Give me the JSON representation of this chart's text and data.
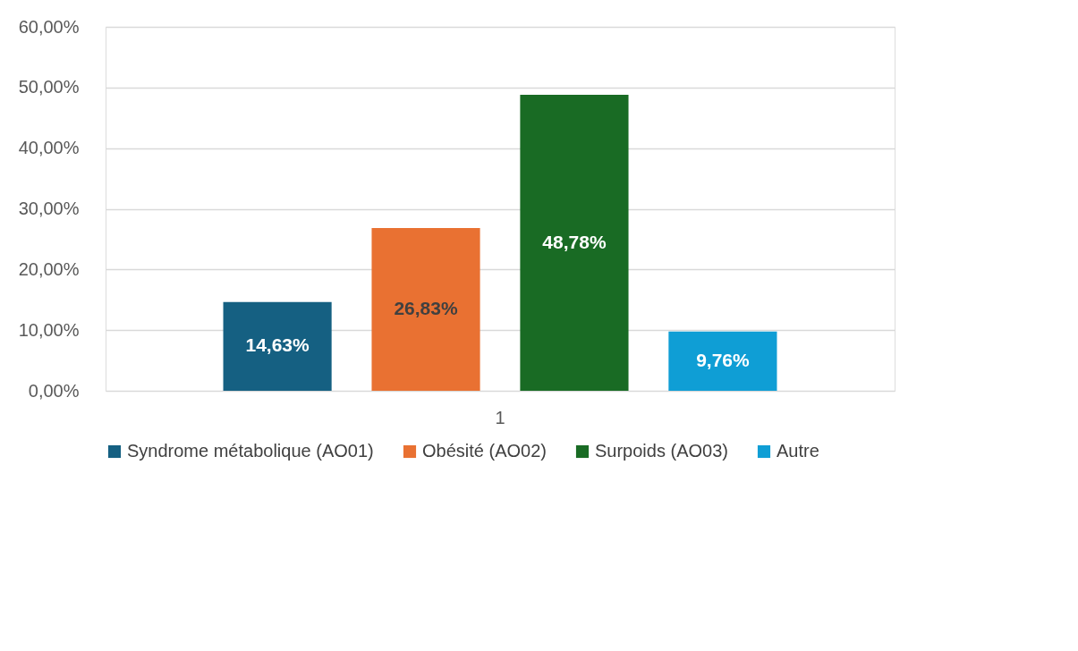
{
  "chart_data": {
    "type": "bar",
    "categories": [
      "1"
    ],
    "series": [
      {
        "name": "Syndrome métabolique (AO01)",
        "color": "#156082",
        "values": [
          14.63
        ],
        "value_labels": [
          "14,63%"
        ]
      },
      {
        "name": "Obésité (AO02)",
        "color": "#e97132",
        "values": [
          26.83
        ],
        "value_labels": [
          "26,83%"
        ]
      },
      {
        "name": "Surpoids (AO03)",
        "color": "#196b24",
        "values": [
          48.78
        ],
        "value_labels": [
          "48,78%"
        ]
      },
      {
        "name": "Autre",
        "color": "#0f9ed5",
        "values": [
          9.76
        ],
        "value_labels": [
          "9,76%"
        ]
      }
    ],
    "ylim": [
      0,
      60
    ],
    "yticks": [
      {
        "value": 0,
        "label": "0,00%"
      },
      {
        "value": 10,
        "label": "10,00%"
      },
      {
        "value": 20,
        "label": "20,00%"
      },
      {
        "value": 30,
        "label": "30,00%"
      },
      {
        "value": 40,
        "label": "40,00%"
      },
      {
        "value": 50,
        "label": "50,00%"
      },
      {
        "value": 60,
        "label": "60,00%"
      }
    ],
    "grid": "y",
    "legend": "bottom"
  }
}
